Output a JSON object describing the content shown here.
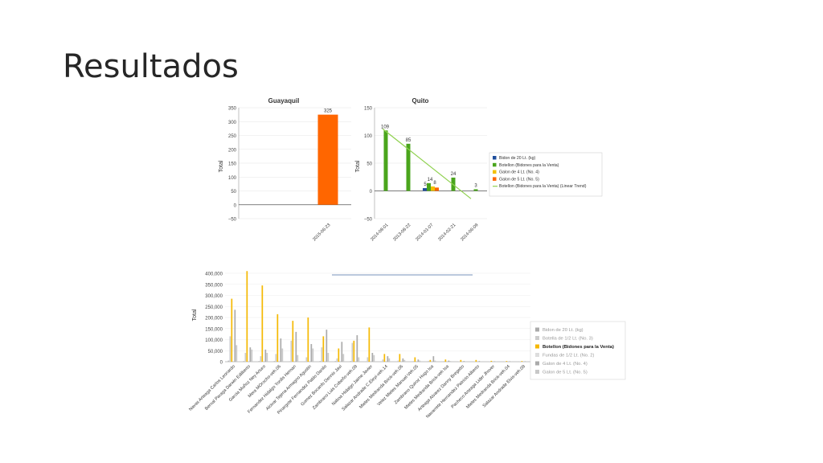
{
  "slide": {
    "title": "Resultados"
  },
  "chart_data": [
    {
      "type": "bar",
      "title": "Guayaquil",
      "ylabel": "Total",
      "xlabel": "",
      "ylim": [
        -50,
        350
      ],
      "yticks": [
        -50,
        0,
        50,
        100,
        150,
        200,
        250,
        300,
        350
      ],
      "categories": [
        "2015-06-23"
      ],
      "series": [
        {
          "name": "Galon de 5 Lt. (No. 5)",
          "color": "#ff6600",
          "values": [
            325
          ]
        }
      ],
      "data_labels": [
        "325"
      ],
      "grid": true
    },
    {
      "type": "bar",
      "title": "Quito",
      "ylabel": "Total",
      "xlabel": "",
      "ylim": [
        -50,
        150
      ],
      "yticks": [
        -50,
        0,
        50,
        100,
        150
      ],
      "categories": [
        "2014-08-01",
        "2013-08-22",
        "2014-01-07",
        "2014-02-21",
        "2014-06-09"
      ],
      "series": [
        {
          "name": "Bidon de 20 Lt. (kg)",
          "color": "#1f4e9c",
          "values": [
            0,
            0,
            5,
            0,
            0
          ]
        },
        {
          "name": "Botellon (Bidones para la Venta)",
          "color": "#4aa51c",
          "values": [
            109,
            85,
            14,
            24,
            3
          ]
        },
        {
          "name": "Galon de 4 Lt. (No. 4)",
          "color": "#f3c000",
          "values": [
            0,
            0,
            8,
            0,
            0
          ]
        },
        {
          "name": "Galon de 5 Lt. (No. 5)",
          "color": "#ff6600",
          "values": [
            0,
            0,
            6,
            0,
            0
          ]
        }
      ],
      "trend": {
        "name": "Botellon (Bidones para la Venta) (Linear Trend)",
        "color": "#8fd14f",
        "start": 112,
        "end": -14
      },
      "data_labels": [
        {
          "category": 0,
          "text": "109"
        },
        {
          "category": 1,
          "text": "85"
        },
        {
          "category": 2,
          "text": "5"
        },
        {
          "category": 2,
          "text": "14"
        },
        {
          "category": 2,
          "text": "8"
        },
        {
          "category": 3,
          "text": "24"
        },
        {
          "category": 4,
          "text": "3"
        }
      ],
      "legend": "right",
      "grid": true
    },
    {
      "type": "bar",
      "title": "",
      "ylabel": "Total",
      "xlabel": "",
      "ylim": [
        0,
        400000
      ],
      "yticks": [
        "0",
        "50,000",
        "100,000",
        "150,000",
        "200,000",
        "250,000",
        "300,000",
        "350,000",
        "400,000"
      ],
      "categories": [
        "Navas Arteaga Carlos Leonardo",
        "Bernal Paraga Darwin Edilberto",
        "Garcia Muñoz Ney Arturo",
        "Mera MOrocho-veh.06",
        "Fernandez Hidalgo Yordis Hernan",
        "Alcivar Tejena Armagno Agustin",
        "Pinargote Fernandez Pablo Danilo",
        "Gomez Bocanfo Dennis Javi",
        "Zambrano Luis Cobeño-veh.09",
        "Naboa Hidalgo Jaime Javier",
        "Salazar Andrade C.Eleyi-veh.14",
        "Mieles Medranda Brick-veh.06",
        "Velez Mieles Manuel-Veh.05",
        "Zambrano Quiroz Hugo Isa",
        "Mieles Medranda Brick-veh Isa",
        "Arteaga Alvarez Danny Bregetto",
        "Navarrete Hernandez Patricio Alberto",
        "Pacheco Arteaga Lider Jhover",
        "Mieles Medranda Brick-veh.04",
        "Salazar Andrade Elvis-veh.09"
      ],
      "series": [
        {
          "name": "Bidon de 20 Lt. (kg)",
          "color": "#bbbbbb",
          "values": [
            5000,
            3000,
            3000,
            3000,
            2000,
            2000,
            3000,
            3000,
            3000,
            2000,
            1000,
            1000,
            1000,
            1000,
            1000,
            500,
            500,
            500,
            500,
            500
          ]
        },
        {
          "name": "Botella de 1/2 Lt. (No. 3)",
          "color": "#cccccc",
          "values": [
            115000,
            40000,
            25000,
            35000,
            95000,
            20000,
            65000,
            15000,
            85000,
            20000,
            10000,
            5000,
            3000,
            4000,
            3000,
            2000,
            2000,
            1000,
            1000,
            1000
          ]
        },
        {
          "name": "Botellon (Bidones para la Venta)",
          "color": "#f5b800",
          "values": [
            285000,
            410000,
            345000,
            215000,
            185000,
            200000,
            115000,
            60000,
            95000,
            155000,
            35000,
            35000,
            20000,
            8000,
            10000,
            8000,
            8000,
            4000,
            3000,
            3000
          ]
        },
        {
          "name": "Fundas de 1/2 Lt. (No. 2)",
          "color": "#dddddd",
          "values": [
            0,
            0,
            0,
            0,
            0,
            0,
            0,
            0,
            0,
            0,
            0,
            0,
            0,
            0,
            0,
            0,
            0,
            0,
            0,
            0
          ]
        },
        {
          "name": "Galon de 4 Lt. (No. 4)",
          "color": "#aaaaaa",
          "values": [
            235000,
            65000,
            55000,
            105000,
            135000,
            80000,
            145000,
            90000,
            120000,
            40000,
            25000,
            15000,
            10000,
            25000,
            5000,
            3000,
            3000,
            2000,
            2000,
            2000
          ]
        },
        {
          "name": "Galon de 5 Lt. (No. 5)",
          "color": "#c8c8c8",
          "values": [
            75000,
            55000,
            40000,
            60000,
            30000,
            60000,
            40000,
            35000,
            20000,
            30000,
            15000,
            8000,
            5000,
            5000,
            3000,
            2000,
            2000,
            1000,
            1000,
            1000
          ]
        }
      ],
      "legend_items": [
        {
          "label": "Bidon de 20 Lt. (kg)",
          "color": "#aaaaaa",
          "bold": false
        },
        {
          "label": "Botella de 1/2 Lt. (No. 3)",
          "color": "#cccccc",
          "bold": false
        },
        {
          "label": "Botellon (Bidones para la Venta)",
          "color": "#f5b800",
          "bold": true
        },
        {
          "label": "Fundas de 1/2 Lt. (No. 2)",
          "color": "#dddddd",
          "bold": false
        },
        {
          "label": "Galon de 4 Lt. (No. 4)",
          "color": "#aaaaaa",
          "bold": false
        },
        {
          "label": "Galon de 5 Lt. (No. 5)",
          "color": "#c8c8c8",
          "bold": false
        }
      ],
      "legend": "right",
      "grid": true
    }
  ]
}
